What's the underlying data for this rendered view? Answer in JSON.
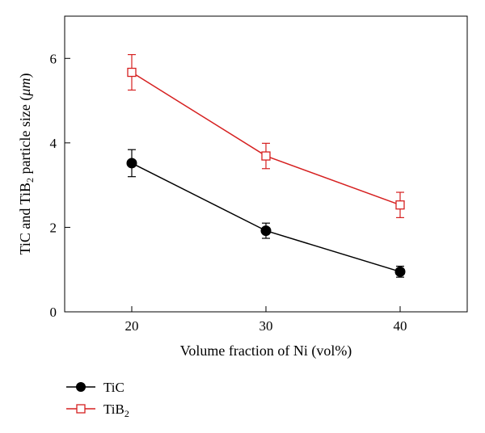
{
  "chart_data": {
    "type": "line",
    "xlabel": "Volume fraction of Ni (vol%)",
    "ylabel": {
      "prefix": "TiC and TiB",
      "sub": "2",
      "suffix": " particle size (",
      "unit_italic": "μm",
      "close": ")"
    },
    "xlim": [
      15,
      45
    ],
    "ylim": [
      0,
      7
    ],
    "xticks": [
      20,
      30,
      40
    ],
    "yticks": [
      0,
      2,
      4,
      6
    ],
    "grid": false,
    "legend_position": "bottom-left, below plot",
    "series": [
      {
        "name": "TiC",
        "legend_main": "TiC",
        "legend_sub": "",
        "color": "#000000",
        "marker": "filled-circle",
        "x": [
          20,
          30,
          40
        ],
        "y": [
          3.52,
          1.92,
          0.95
        ],
        "err": [
          0.32,
          0.18,
          0.13
        ]
      },
      {
        "name": "TiB2",
        "legend_main": "TiB",
        "legend_sub": "2",
        "color": "#d62020",
        "marker": "open-square",
        "x": [
          20,
          30,
          40
        ],
        "y": [
          5.67,
          3.69,
          2.53
        ],
        "err": [
          0.42,
          0.3,
          0.3
        ]
      }
    ]
  }
}
